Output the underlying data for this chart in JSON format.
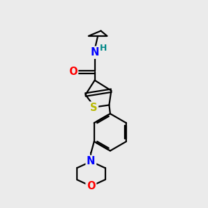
{
  "background_color": "#ebebeb",
  "atom_colors": {
    "N": "#0000ff",
    "O": "#ff0000",
    "S": "#b8b800",
    "C": "#000000",
    "H": "#008888"
  },
  "bond_color": "#000000",
  "bond_width": 1.6
}
